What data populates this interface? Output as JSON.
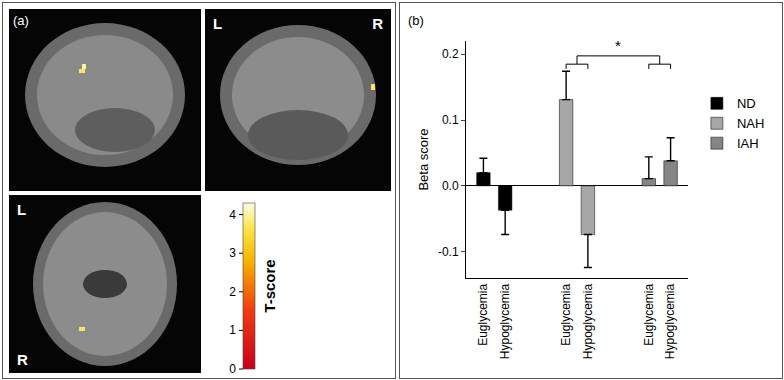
{
  "panel_a": {
    "label": "(a)",
    "views": [
      {
        "labels": []
      },
      {
        "labels": [
          "L",
          "R"
        ]
      },
      {
        "labels": [
          "L",
          "R"
        ]
      }
    ],
    "colorbar": {
      "title": "T-score",
      "range": [
        0,
        4.3
      ],
      "ticks": [
        0,
        1,
        2,
        3,
        4
      ]
    }
  },
  "chart_data": {
    "type": "bar",
    "panel_label": "(b)",
    "y_label": "Beta score",
    "categories": [
      "Euglycemia",
      "Hypoglycemia",
      "Euglycemia",
      "Hypoglycemia",
      "Euglycemia",
      "Hypoglycemia"
    ],
    "series": [
      {
        "name": "ND",
        "color": "#000000",
        "values": [
          0.02,
          -0.037,
          null,
          null,
          null,
          null
        ],
        "errors": [
          0.022,
          0.037,
          null,
          null,
          null,
          null
        ]
      },
      {
        "name": "NAH",
        "color": "#a6a6a6",
        "values": [
          null,
          null,
          0.131,
          -0.074,
          null,
          null
        ],
        "errors": [
          null,
          null,
          0.043,
          0.05,
          null,
          null
        ]
      },
      {
        "name": "IAH",
        "color": "#858585",
        "values": [
          null,
          null,
          null,
          null,
          0.011,
          0.038
        ],
        "errors": [
          null,
          null,
          null,
          null,
          0.033,
          0.035
        ]
      }
    ],
    "ylim": [
      -0.14,
      0.22
    ],
    "yticks": [
      -0.1,
      {
        "value": 0,
        "label": "0.0"
      },
      0.1,
      0.2
    ],
    "legend": "right",
    "significance": {
      "text": "*",
      "groups": [
        [
          2,
          3
        ],
        [
          4,
          5
        ]
      ]
    }
  }
}
